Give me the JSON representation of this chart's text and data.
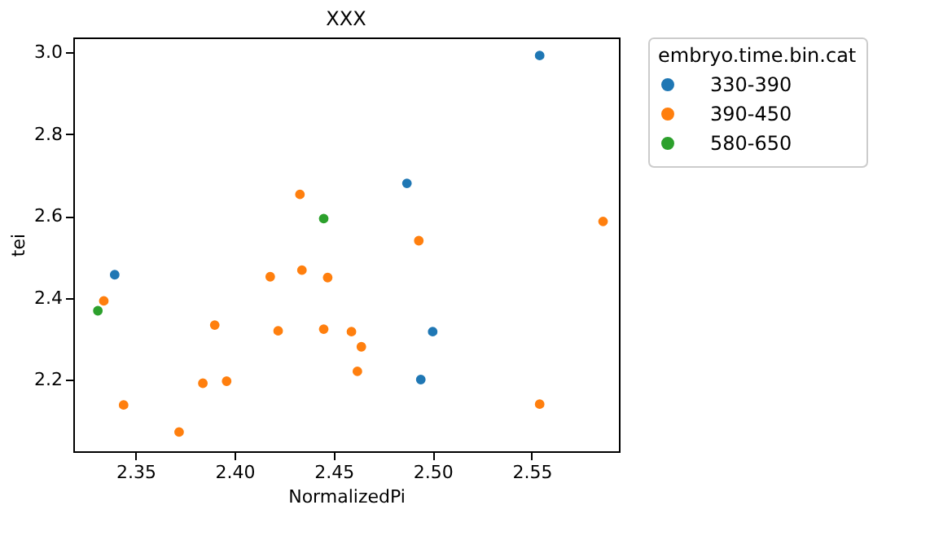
{
  "chart_data": {
    "type": "scatter",
    "title": "XXX",
    "xlabel": "NormalizedPi",
    "ylabel": "tei",
    "legend_title": "embryo.time.bin.cat",
    "legend": "right",
    "marker": "circle",
    "grid": false,
    "xlim": [
      2.3186,
      2.594
    ],
    "ylim": [
      2.026,
      3.036
    ],
    "xticks": [
      {
        "value": 2.35,
        "label": "2.35"
      },
      {
        "value": 2.4,
        "label": "2.40"
      },
      {
        "value": 2.45,
        "label": "2.45"
      },
      {
        "value": 2.5,
        "label": "2.50"
      },
      {
        "value": 2.55,
        "label": "2.55"
      }
    ],
    "yticks": [
      {
        "value": 2.2,
        "label": "2.2"
      },
      {
        "value": 2.4,
        "label": "2.4"
      },
      {
        "value": 2.6,
        "label": "2.6"
      },
      {
        "value": 2.8,
        "label": "2.8"
      },
      {
        "value": 3.0,
        "label": "3.0"
      }
    ],
    "series": [
      {
        "name": "330-390",
        "color": "#1f77b4",
        "x": [
          2.3395,
          2.494,
          2.5,
          2.554,
          2.487
        ],
        "values": [
          2.457,
          2.201,
          2.318,
          2.992,
          2.68
        ]
      },
      {
        "name": "390-450",
        "color": "#ff7f0e",
        "x": [
          2.334,
          2.344,
          2.372,
          2.384,
          2.396,
          2.39,
          2.418,
          2.434,
          2.447,
          2.422,
          2.445,
          2.459,
          2.464,
          2.462,
          2.554,
          2.433,
          2.493,
          2.586
        ],
        "values": [
          2.393,
          2.139,
          2.073,
          2.192,
          2.197,
          2.334,
          2.452,
          2.468,
          2.45,
          2.32,
          2.324,
          2.318,
          2.281,
          2.221,
          2.141,
          2.653,
          2.54,
          2.587
        ]
      },
      {
        "name": "580-650",
        "color": "#2ca02c",
        "x": [
          2.331,
          2.445
        ],
        "values": [
          2.369,
          2.594
        ]
      }
    ]
  }
}
